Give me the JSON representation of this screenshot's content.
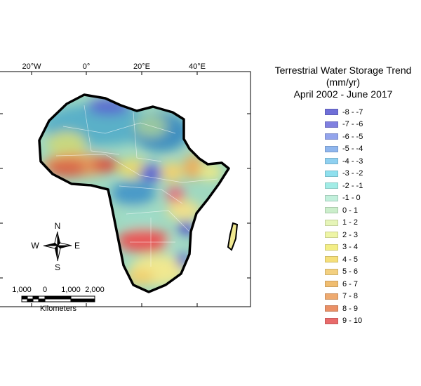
{
  "map": {
    "graticule_labels": {
      "longitudes": [
        "20°W",
        "0°",
        "20°E",
        "40°E"
      ]
    },
    "compass": {
      "north": "N",
      "south": "S",
      "east": "E",
      "west": "W"
    },
    "scale_bar": {
      "ticks": [
        "1,000",
        "0",
        "1,000",
        "2,000"
      ],
      "unit": "Kilometers"
    }
  },
  "legend": {
    "title_lines": [
      "Terrestrial Water Storage Trend",
      "(mm/yr)",
      "April 2002 - June 2017"
    ],
    "items": [
      {
        "label": "-8 - -7",
        "color": "#6f6fd8"
      },
      {
        "label": "-7 - -6",
        "color": "#8080e0"
      },
      {
        "label": "-6 - -5",
        "color": "#93a4ec"
      },
      {
        "label": "-5 - -4",
        "color": "#8fb6ee"
      },
      {
        "label": "-4 - -3",
        "color": "#8fd0f0"
      },
      {
        "label": "-3 - -2",
        "color": "#8fe0ee"
      },
      {
        "label": "-2 - -1",
        "color": "#a2ece6"
      },
      {
        "label": "-1 - 0",
        "color": "#c2f0dc"
      },
      {
        "label": "0 - 1",
        "color": "#cbeecb"
      },
      {
        "label": "1 - 2",
        "color": "#e6f5b8"
      },
      {
        "label": "2 - 3",
        "color": "#eef5a6"
      },
      {
        "label": "3 - 4",
        "color": "#f3ee86"
      },
      {
        "label": "4 - 5",
        "color": "#f5df7a"
      },
      {
        "label": "5 - 6",
        "color": "#f3d080"
      },
      {
        "label": "6 - 7",
        "color": "#f0bd70"
      },
      {
        "label": "7 - 8",
        "color": "#eeaa70"
      },
      {
        "label": "8 - 9",
        "color": "#ea9066"
      },
      {
        "label": "9 - 10",
        "color": "#e86a6a"
      }
    ]
  }
}
